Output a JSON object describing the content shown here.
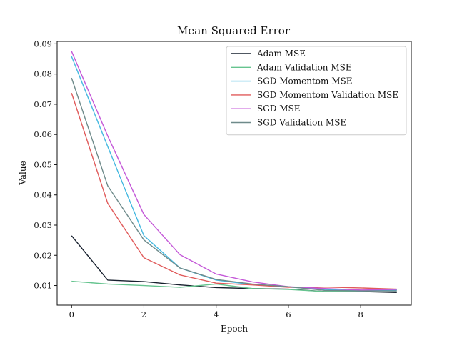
{
  "chart_data": {
    "type": "line",
    "title": "Mean Squared Error",
    "xlabel": "Epoch",
    "ylabel": "Value",
    "x": [
      0,
      1,
      2,
      3,
      4,
      5,
      6,
      7,
      8,
      9
    ],
    "xlim": [
      -0.4,
      9.4
    ],
    "ylim": [
      0.0035,
      0.0908
    ],
    "xticks": [
      0,
      2,
      4,
      6,
      8
    ],
    "xtick_labels": [
      "0",
      "2",
      "4",
      "6",
      "8"
    ],
    "yticks": [
      0.01,
      0.02,
      0.03,
      0.04,
      0.05,
      0.06,
      0.07,
      0.08,
      0.09
    ],
    "ytick_labels": [
      "0.01",
      "0.02",
      "0.03",
      "0.04",
      "0.05",
      "0.06",
      "0.07",
      "0.08",
      "0.09"
    ],
    "grid": false,
    "legend_position": "top-right",
    "series": [
      {
        "name": "Adam MSE",
        "color": "#17202e",
        "values": [
          0.0265,
          0.0118,
          0.0113,
          0.0102,
          0.0093,
          0.009,
          0.0088,
          0.008,
          0.008,
          0.0077
        ]
      },
      {
        "name": "Adam Validation MSE",
        "color": "#66c48f",
        "values": [
          0.0114,
          0.0105,
          0.01,
          0.0094,
          0.0105,
          0.009,
          0.0087,
          0.008,
          0.0082,
          0.0086
        ]
      },
      {
        "name": "SGD Momentom MSE",
        "color": "#44b8e0",
        "values": [
          0.0858,
          0.056,
          0.0265,
          0.0158,
          0.0118,
          0.0103,
          0.0095,
          0.0087,
          0.0082,
          0.0085
        ]
      },
      {
        "name": "SGD Momentom Validation MSE",
        "color": "#e05a5a",
        "values": [
          0.0737,
          0.0372,
          0.0192,
          0.0135,
          0.0108,
          0.0102,
          0.0094,
          0.0095,
          0.0092,
          0.0088
        ]
      },
      {
        "name": "SGD MSE",
        "color": "#c458d8",
        "values": [
          0.0875,
          0.0595,
          0.0335,
          0.0202,
          0.0138,
          0.0112,
          0.0096,
          0.009,
          0.0085,
          0.0087
        ]
      },
      {
        "name": "SGD Validation MSE",
        "color": "#6e8a8a",
        "values": [
          0.0787,
          0.043,
          0.0251,
          0.0158,
          0.012,
          0.0105,
          0.0096,
          0.0084,
          0.0082,
          0.0082
        ]
      }
    ]
  }
}
